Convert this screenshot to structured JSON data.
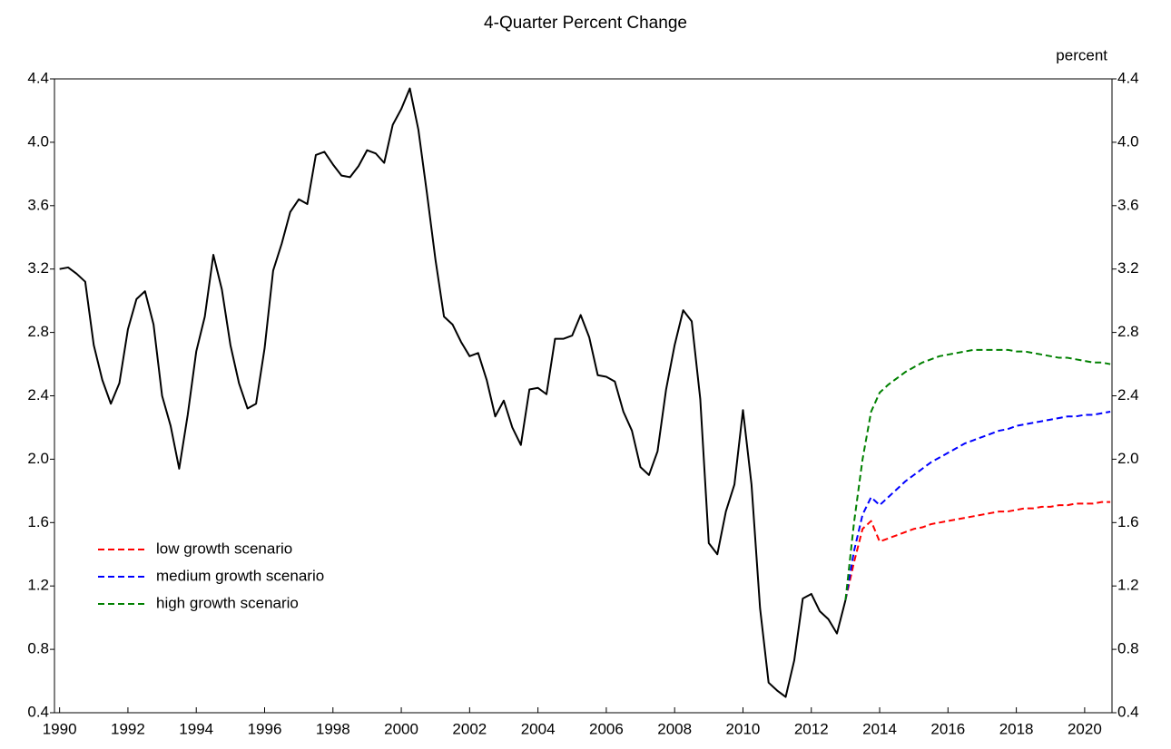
{
  "chart_data": {
    "type": "line",
    "title": "4-Quarter Percent Change",
    "y_label": "percent",
    "x": [
      1990,
      1990.25,
      1990.5,
      1990.75,
      1991,
      1991.25,
      1991.5,
      1991.75,
      1992,
      1992.25,
      1992.5,
      1992.75,
      1993,
      1993.25,
      1993.5,
      1993.75,
      1994,
      1994.25,
      1994.5,
      1994.75,
      1995,
      1995.25,
      1995.5,
      1995.75,
      1996,
      1996.25,
      1996.5,
      1996.75,
      1997,
      1997.25,
      1997.5,
      1997.75,
      1998,
      1998.25,
      1998.5,
      1998.75,
      1999,
      1999.25,
      1999.5,
      1999.75,
      2000,
      2000.25,
      2000.5,
      2000.75,
      2001,
      2001.25,
      2001.5,
      2001.75,
      2002,
      2002.25,
      2002.5,
      2002.75,
      2003,
      2003.25,
      2003.5,
      2003.75,
      2004,
      2004.25,
      2004.5,
      2004.75,
      2005,
      2005.25,
      2005.5,
      2005.75,
      2006,
      2006.25,
      2006.5,
      2006.75,
      2007,
      2007.25,
      2007.5,
      2007.75,
      2008,
      2008.25,
      2008.5,
      2008.75,
      2009,
      2009.25,
      2009.5,
      2009.75,
      2010,
      2010.25,
      2010.5,
      2010.75,
      2011,
      2011.25,
      2011.5,
      2011.75,
      2012,
      2012.25,
      2012.5,
      2012.75,
      2013,
      2013.25,
      2013.5,
      2013.75,
      2014,
      2014.25,
      2014.5,
      2014.75,
      2015,
      2015.25,
      2015.5,
      2015.75,
      2016,
      2016.25,
      2016.5,
      2016.75,
      2017,
      2017.25,
      2017.5,
      2017.75,
      2018,
      2018.25,
      2018.5,
      2018.75,
      2019,
      2019.25,
      2019.5,
      2019.75,
      2020,
      2020.25,
      2020.5,
      2020.75
    ],
    "series": [
      {
        "name": "low growth scenario",
        "color": "#ff0000",
        "dashed": true,
        "values": [
          null,
          null,
          null,
          null,
          null,
          null,
          null,
          null,
          null,
          null,
          null,
          null,
          null,
          null,
          null,
          null,
          null,
          null,
          null,
          null,
          null,
          null,
          null,
          null,
          null,
          null,
          null,
          null,
          null,
          null,
          null,
          null,
          null,
          null,
          null,
          null,
          null,
          null,
          null,
          null,
          null,
          null,
          null,
          null,
          null,
          null,
          null,
          null,
          null,
          null,
          null,
          null,
          null,
          null,
          null,
          null,
          null,
          null,
          null,
          null,
          null,
          null,
          null,
          null,
          null,
          null,
          null,
          null,
          null,
          null,
          null,
          null,
          null,
          null,
          null,
          null,
          null,
          null,
          null,
          null,
          null,
          null,
          null,
          null,
          null,
          null,
          null,
          null,
          null,
          null,
          null,
          null,
          1.11,
          1.35,
          1.56,
          1.61,
          1.48,
          1.5,
          1.52,
          1.54,
          1.56,
          1.57,
          1.59,
          1.6,
          1.61,
          1.62,
          1.63,
          1.64,
          1.65,
          1.66,
          1.67,
          1.67,
          1.68,
          1.69,
          1.69,
          1.7,
          1.7,
          1.71,
          1.71,
          1.72,
          1.72,
          1.72,
          1.73,
          1.73
        ]
      },
      {
        "name": "medium growth scenario",
        "color": "#0000ff",
        "dashed": true,
        "values": [
          null,
          null,
          null,
          null,
          null,
          null,
          null,
          null,
          null,
          null,
          null,
          null,
          null,
          null,
          null,
          null,
          null,
          null,
          null,
          null,
          null,
          null,
          null,
          null,
          null,
          null,
          null,
          null,
          null,
          null,
          null,
          null,
          null,
          null,
          null,
          null,
          null,
          null,
          null,
          null,
          null,
          null,
          null,
          null,
          null,
          null,
          null,
          null,
          null,
          null,
          null,
          null,
          null,
          null,
          null,
          null,
          null,
          null,
          null,
          null,
          null,
          null,
          null,
          null,
          null,
          null,
          null,
          null,
          null,
          null,
          null,
          null,
          null,
          null,
          null,
          null,
          null,
          null,
          null,
          null,
          null,
          null,
          null,
          null,
          null,
          null,
          null,
          null,
          null,
          null,
          null,
          null,
          1.11,
          1.42,
          1.65,
          1.76,
          1.71,
          1.76,
          1.81,
          1.86,
          1.9,
          1.94,
          1.98,
          2.01,
          2.04,
          2.07,
          2.1,
          2.12,
          2.14,
          2.16,
          2.18,
          2.19,
          2.21,
          2.22,
          2.23,
          2.24,
          2.25,
          2.26,
          2.27,
          2.27,
          2.28,
          2.28,
          2.29,
          2.3
        ]
      },
      {
        "name": "high growth scenario",
        "color": "#008000",
        "dashed": true,
        "values": [
          null,
          null,
          null,
          null,
          null,
          null,
          null,
          null,
          null,
          null,
          null,
          null,
          null,
          null,
          null,
          null,
          null,
          null,
          null,
          null,
          null,
          null,
          null,
          null,
          null,
          null,
          null,
          null,
          null,
          null,
          null,
          null,
          null,
          null,
          null,
          null,
          null,
          null,
          null,
          null,
          null,
          null,
          null,
          null,
          null,
          null,
          null,
          null,
          null,
          null,
          null,
          null,
          null,
          null,
          null,
          null,
          null,
          null,
          null,
          null,
          null,
          null,
          null,
          null,
          null,
          null,
          null,
          null,
          null,
          null,
          null,
          null,
          null,
          null,
          null,
          null,
          null,
          null,
          null,
          null,
          null,
          null,
          null,
          null,
          null,
          null,
          null,
          null,
          null,
          null,
          null,
          null,
          1.11,
          1.6,
          2.0,
          2.3,
          2.42,
          2.47,
          2.51,
          2.55,
          2.58,
          2.61,
          2.63,
          2.65,
          2.66,
          2.67,
          2.68,
          2.69,
          2.69,
          2.69,
          2.69,
          2.69,
          2.68,
          2.68,
          2.67,
          2.66,
          2.65,
          2.64,
          2.64,
          2.63,
          2.62,
          2.61,
          2.61,
          2.6
        ]
      },
      {
        "color": "#000000",
        "dashed": false,
        "values": [
          3.2,
          3.21,
          3.17,
          3.12,
          2.72,
          2.5,
          2.35,
          2.48,
          2.82,
          3.01,
          3.06,
          2.85,
          2.4,
          2.21,
          1.94,
          2.28,
          2.68,
          2.9,
          3.29,
          3.07,
          2.72,
          2.48,
          2.32,
          2.35,
          2.7,
          3.19,
          3.36,
          3.56,
          3.64,
          3.61,
          3.92,
          3.94,
          3.86,
          3.79,
          3.78,
          3.85,
          3.95,
          3.93,
          3.87,
          4.11,
          4.21,
          4.34,
          4.08,
          3.68,
          3.26,
          2.9,
          2.85,
          2.74,
          2.65,
          2.67,
          2.5,
          2.27,
          2.37,
          2.2,
          2.09,
          2.44,
          2.45,
          2.41,
          2.76,
          2.76,
          2.78,
          2.91,
          2.77,
          2.53,
          2.52,
          2.49,
          2.3,
          2.18,
          1.95,
          1.9,
          2.05,
          2.44,
          2.72,
          2.94,
          2.87,
          2.38,
          1.47,
          1.4,
          1.67,
          1.84,
          2.31,
          1.84,
          1.06,
          0.59,
          0.54,
          0.5,
          0.73,
          1.12,
          1.15,
          1.04,
          0.99,
          0.9,
          1.11,
          null,
          null,
          null,
          null,
          null,
          null,
          null,
          null,
          null,
          null,
          null,
          null,
          null,
          null,
          null,
          null,
          null,
          null,
          null,
          null,
          null,
          null,
          null,
          null,
          null,
          null,
          null,
          null,
          null,
          null,
          null
        ]
      }
    ],
    "xlim": [
      1989.85,
      2020.8
    ],
    "xticks": [
      1990,
      1992,
      1994,
      1996,
      1998,
      2000,
      2002,
      2004,
      2006,
      2008,
      2010,
      2012,
      2014,
      2016,
      2018,
      2020
    ],
    "ylim": [
      0.4,
      4.4
    ],
    "yticks": [
      0.4,
      0.8,
      1.2,
      1.6,
      {
        "value": 2,
        "label": "2.0"
      },
      2.4,
      2.8,
      3.2,
      3.6,
      {
        "value": 4,
        "label": "4.0"
      },
      4.4
    ],
    "y2lim": [
      0.4,
      4.4
    ],
    "y2ticks": [
      0.4,
      0.8,
      1.2,
      1.6,
      {
        "value": 2,
        "label": "2.0"
      },
      2.4,
      2.8,
      3.2,
      3.6,
      {
        "value": 4,
        "label": "4.0"
      },
      4.4
    ],
    "legend": "lower-left",
    "grid": false
  }
}
